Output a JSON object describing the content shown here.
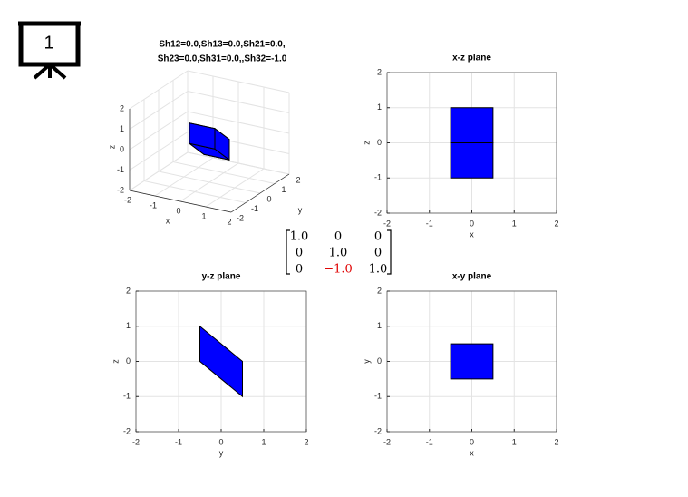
{
  "slide_number": "1",
  "matrix": [
    [
      {
        "text": "1.0"
      },
      {
        "text": "0"
      },
      {
        "text": "0"
      }
    ],
    [
      {
        "text": "0"
      },
      {
        "text": "1.0"
      },
      {
        "text": "0"
      }
    ],
    [
      {
        "text": "0"
      },
      {
        "text": "−1.0",
        "color": "#e00000"
      },
      {
        "text": "1.0"
      }
    ]
  ],
  "chart_data": [
    {
      "type": "patch3d",
      "title": [
        "Sh12=0.0,Sh13=0.0,Sh21=0.0,",
        "Sh23=0.0,Sh31=0.0,,Sh32=-1.0"
      ],
      "xlabel": "x",
      "ylabel": "y",
      "zlabel": "z",
      "xlim": [
        -2,
        2
      ],
      "ylim": [
        -2,
        2
      ],
      "zlim": [
        -2,
        2
      ],
      "xticks": [
        -2,
        -1,
        0,
        1,
        2
      ],
      "yticks": [
        -2,
        -1,
        0,
        1,
        2
      ],
      "zticks": [
        -2,
        -1,
        0,
        1,
        2
      ],
      "grid": true,
      "color": "#0000ff",
      "faces": [
        {
          "x": [
            -0.5,
            -0.5,
            -0.5,
            -0.5
          ],
          "y": [
            -0.5,
            0.5,
            0.5,
            -0.5
          ],
          "z": [
            0,
            -1,
            0,
            1
          ]
        },
        {
          "x": [
            0.5,
            0.5,
            0.5,
            0.5
          ],
          "y": [
            -0.5,
            0.5,
            0.5,
            -0.5
          ],
          "z": [
            0,
            -1,
            0,
            1
          ]
        },
        {
          "x": [
            -0.5,
            0.5,
            0.5,
            -0.5
          ],
          "y": [
            -0.5,
            -0.5,
            -0.5,
            -0.5
          ],
          "z": [
            0,
            0,
            1,
            1
          ]
        },
        {
          "x": [
            -0.5,
            0.5,
            0.5,
            -0.5
          ],
          "y": [
            0.5,
            0.5,
            0.5,
            0.5
          ],
          "z": [
            -1,
            -1,
            0,
            0
          ]
        },
        {
          "x": [
            -0.5,
            0.5,
            0.5,
            -0.5
          ],
          "y": [
            -0.5,
            -0.5,
            0.5,
            0.5
          ],
          "z": [
            0,
            0,
            -1,
            -1
          ]
        },
        {
          "x": [
            -0.5,
            0.5,
            0.5,
            -0.5
          ],
          "y": [
            -0.5,
            -0.5,
            0.5,
            0.5
          ],
          "z": [
            1,
            1,
            0,
            0
          ]
        }
      ]
    },
    {
      "type": "patch",
      "title": "x-z plane",
      "xlabel": "x",
      "ylabel": "z",
      "xlim": [
        -2,
        2
      ],
      "ylim": [
        -2,
        2
      ],
      "xticks": [
        -2,
        -1,
        0,
        1,
        2
      ],
      "yticks": [
        -2,
        -1,
        0,
        1,
        2
      ],
      "grid": true,
      "color": "#0000ff",
      "faces": [
        {
          "x": [
            -0.5,
            0.5,
            0.5,
            -0.5
          ],
          "y": [
            0,
            0,
            1,
            1
          ]
        },
        {
          "x": [
            -0.5,
            0.5,
            0.5,
            -0.5
          ],
          "y": [
            -1,
            -1,
            0,
            0
          ]
        }
      ]
    },
    {
      "type": "patch",
      "title": "y-z plane",
      "xlabel": "y",
      "ylabel": "z",
      "xlim": [
        -2,
        2
      ],
      "ylim": [
        -2,
        2
      ],
      "xticks": [
        -2,
        -1,
        0,
        1,
        2
      ],
      "yticks": [
        -2,
        -1,
        0,
        1,
        2
      ],
      "grid": true,
      "color": "#0000ff",
      "faces": [
        {
          "x": [
            -0.5,
            0.5,
            0.5,
            -0.5
          ],
          "y": [
            0,
            -1,
            0,
            1
          ]
        }
      ]
    },
    {
      "type": "patch",
      "title": "x-y plane",
      "xlabel": "x",
      "ylabel": "y",
      "xlim": [
        -2,
        2
      ],
      "ylim": [
        -2,
        2
      ],
      "xticks": [
        -2,
        -1,
        0,
        1,
        2
      ],
      "yticks": [
        -2,
        -1,
        0,
        1,
        2
      ],
      "grid": true,
      "color": "#0000ff",
      "faces": [
        {
          "x": [
            -0.5,
            0.5,
            0.5,
            -0.5
          ],
          "y": [
            -0.5,
            -0.5,
            0.5,
            0.5
          ]
        }
      ]
    }
  ]
}
